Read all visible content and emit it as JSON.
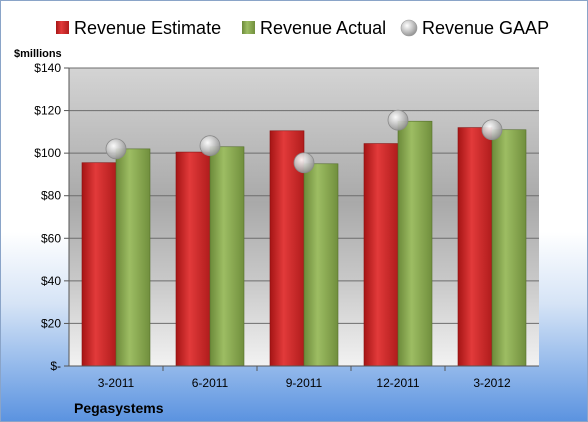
{
  "chart_data": {
    "type": "bar",
    "title": "",
    "ylabel": "$millions",
    "xlabel": "Pegasystems",
    "categories": [
      "3-2011",
      "6-2011",
      "9-2011",
      "12-2011",
      "3-2012"
    ],
    "series": [
      {
        "name": "Revenue Estimate",
        "kind": "bar",
        "color": "#d42a2a",
        "values": [
          95.5,
          100.5,
          110.5,
          104.5,
          112
        ]
      },
      {
        "name": "Revenue Actual",
        "kind": "bar",
        "color": "#8aab52",
        "values": [
          102,
          103,
          95,
          115,
          111
        ]
      },
      {
        "name": "Revenue GAAP",
        "kind": "marker",
        "color": "#c8c8c8",
        "values": [
          102,
          103.5,
          95.5,
          115.5,
          111
        ]
      }
    ],
    "ylim": [
      0,
      140
    ],
    "yticks": [
      0,
      20,
      40,
      60,
      80,
      100,
      120,
      140
    ],
    "ytick_labels": [
      "$-",
      "$20",
      "$40",
      "$60",
      "$80",
      "$100",
      "$120",
      "$140"
    ],
    "grid": true,
    "legend_position": "top"
  }
}
